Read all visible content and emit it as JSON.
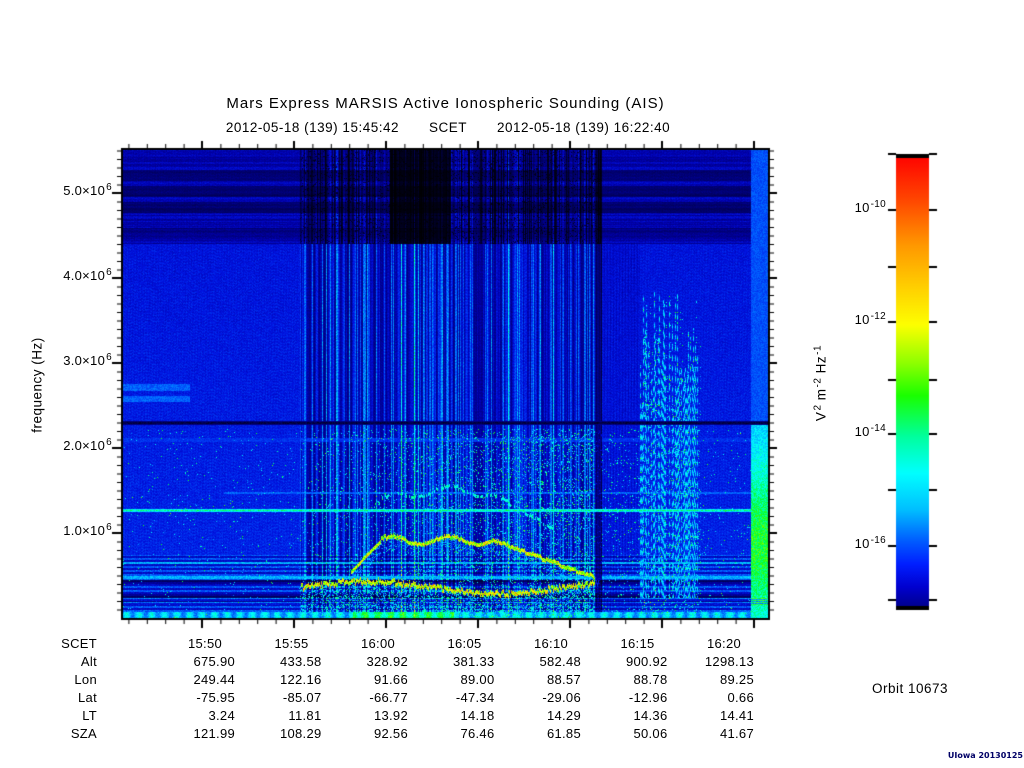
{
  "figure": {
    "title": "Mars Express MARSIS Active Ionospheric Sounding (AIS)",
    "subtitle": {
      "start_scet": "2012-05-18 (139) 15:45:42",
      "separator": "SCET",
      "end_scet": "2012-05-18 (139) 16:22:40"
    },
    "orbit_label": "Orbit 10673",
    "stamp": "UIowa 20130125",
    "background": "#ffffff",
    "frame_color": "#000000",
    "stamp_color": "#000066"
  },
  "chart_data": {
    "type": "heatmap",
    "title": "Mars Express MARSIS Active Ionospheric Sounding (AIS)",
    "x_axis": {
      "label": "SCET",
      "start": "2012-05-18 (139) 15:45:42",
      "end": "2012-05-18 (139) 16:22:40",
      "tick_labels": [
        "15:50",
        "15:55",
        "16:00",
        "16:05",
        "16:10",
        "16:15",
        "16:20"
      ],
      "minor_tick_interval": "1 min"
    },
    "y_axis": {
      "label": "frequency (Hz)",
      "range_hz": [
        0,
        5500000
      ],
      "tick_values_hz": [
        5000000,
        4000000,
        3000000,
        2000000,
        1000000
      ],
      "tick_labels": [
        {
          "base": "5.0×10",
          "exp": "6"
        },
        {
          "base": "4.0×10",
          "exp": "6"
        },
        {
          "base": "3.0×10",
          "exp": "6"
        },
        {
          "base": "2.0×10",
          "exp": "6"
        },
        {
          "base": "1.0×10",
          "exp": "6"
        }
      ],
      "minor_tick_interval_hz": 100000
    },
    "colorbar": {
      "unit_segments": [
        {
          "t": "V"
        },
        {
          "t": "2",
          "sup": true
        },
        {
          "t": " m"
        },
        {
          "t": "-2",
          "sup": true
        },
        {
          "t": " Hz"
        },
        {
          "t": "-1",
          "sup": true
        }
      ],
      "tick_labels": [
        {
          "base": "10",
          "exp": "-10"
        },
        {
          "base": "10",
          "exp": "-12"
        },
        {
          "base": "10",
          "exp": "-14"
        },
        {
          "base": "10",
          "exp": "-16"
        }
      ],
      "range_exponent": [
        -9,
        -17
      ],
      "gradient": [
        [
          0,
          "#ff0000"
        ],
        [
          0.1,
          "#ff4600"
        ],
        [
          0.2,
          "#ff9800"
        ],
        [
          0.3,
          "#ffd400"
        ],
        [
          0.375,
          "#fdff00"
        ],
        [
          0.46,
          "#8cff00"
        ],
        [
          0.53,
          "#1aff00"
        ],
        [
          0.62,
          "#00ff9e"
        ],
        [
          0.7,
          "#00ffff"
        ],
        [
          0.78,
          "#00bfff"
        ],
        [
          0.845,
          "#0061ff"
        ],
        [
          0.9,
          "#001eff"
        ],
        [
          0.95,
          "#0000cf"
        ],
        [
          1,
          "#000084"
        ]
      ]
    },
    "ephemeris_table": {
      "rows": [
        {
          "label": "SCET",
          "values": [
            "15:50",
            "15:55",
            "16:00",
            "16:05",
            "16:10",
            "16:15",
            "16:20"
          ]
        },
        {
          "label": "Alt",
          "values": [
            "675.90",
            "433.58",
            "328.92",
            "381.33",
            "582.48",
            "900.92",
            "1298.13"
          ]
        },
        {
          "label": "Lon",
          "values": [
            "249.44",
            "122.16",
            "91.66",
            "89.00",
            "88.57",
            "88.78",
            "89.25"
          ]
        },
        {
          "label": "Lat",
          "values": [
            "-75.95",
            "-85.07",
            "-66.77",
            "-47.34",
            "-29.06",
            "-12.96",
            "0.66"
          ]
        },
        {
          "label": "LT",
          "values": [
            "3.24",
            "11.81",
            "13.92",
            "14.18",
            "14.29",
            "14.36",
            "14.41"
          ]
        },
        {
          "label": "SZA",
          "values": [
            "121.99",
            "108.29",
            "92.56",
            "76.46",
            "61.85",
            "50.06",
            "41.67"
          ]
        }
      ]
    },
    "features": {
      "background": "quiet blue galactic/receiver noise",
      "black_absorption_line_hz": 2300000,
      "bright_harmonic_line_hz": 1270000,
      "secondary_bright_line_hz": 1480000,
      "active_sounding_interval_scet": [
        "15:55",
        "16:13"
      ],
      "ionospheric_echo_trace_hz": [
        400000,
        1500000
      ],
      "dark_top_band_above_hz": 4400000,
      "tall_cyan_streaks_scet": [
        "16:13",
        "16:16"
      ],
      "right_edge_enhancement": "broadband cyan-green below 2.3 MHz near end of pass",
      "low_freq_harmonic_striping_below_hz": 750000
    }
  },
  "render": {
    "colormap": [
      [
        0,
        "#000000"
      ],
      [
        0.05,
        "#000052"
      ],
      [
        0.13,
        "#0000a8"
      ],
      [
        0.2,
        "#0013e0"
      ],
      [
        0.3,
        "#005aff"
      ],
      [
        0.4,
        "#00c3ff"
      ],
      [
        0.47,
        "#00ffff"
      ],
      [
        0.55,
        "#00ff96"
      ],
      [
        0.63,
        "#0aff1e"
      ],
      [
        0.7,
        "#7dff00"
      ],
      [
        0.78,
        "#ffff00"
      ],
      [
        0.86,
        "#ff9000"
      ],
      [
        0.93,
        "#ff2e00"
      ],
      [
        1,
        "#ff0000"
      ]
    ]
  }
}
